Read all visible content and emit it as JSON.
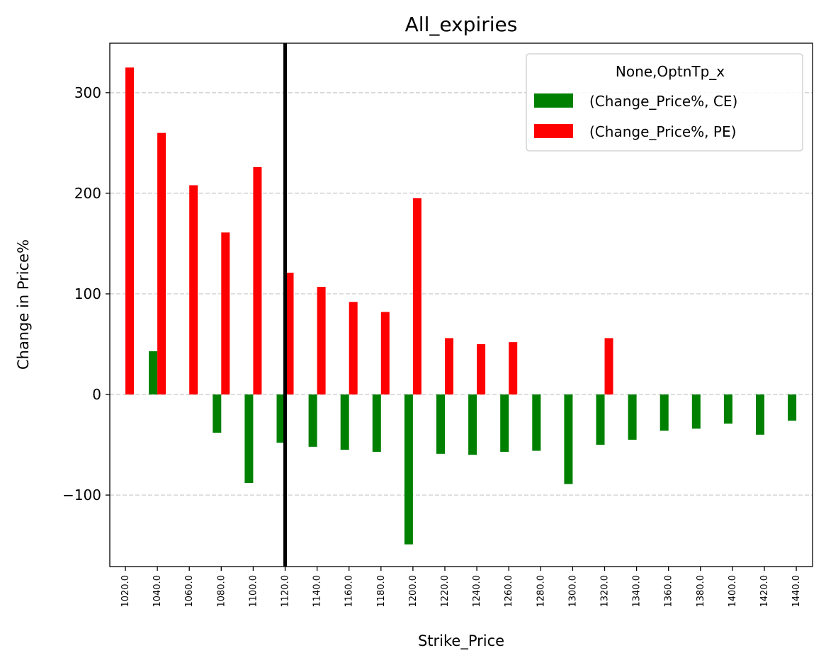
{
  "chart_data": {
    "type": "bar",
    "title": "All_expiries",
    "xlabel": "Strike_Price",
    "ylabel": "Change in Price%",
    "ylim": [
      -172,
      350
    ],
    "yticks": [
      -100,
      0,
      100,
      200,
      300
    ],
    "ytick_labels": [
      "−100",
      "0",
      "100",
      "200",
      "300"
    ],
    "grid": "y-dashed",
    "legend": {
      "title": "None,OptnTp_x",
      "placement": "top-right"
    },
    "categories": [
      "1020.0",
      "1040.0",
      "1060.0",
      "1080.0",
      "1100.0",
      "1120.0",
      "1140.0",
      "1160.0",
      "1180.0",
      "1200.0",
      "1220.0",
      "1240.0",
      "1260.0",
      "1280.0",
      "1300.0",
      "1320.0",
      "1340.0",
      "1360.0",
      "1380.0",
      "1400.0",
      "1420.0",
      "1440.0"
    ],
    "series": [
      {
        "name": "(Change_Price%, CE)",
        "color": "#008000",
        "values": [
          0,
          43,
          0,
          -38,
          -88,
          -48,
          -52,
          -55,
          -57,
          -149,
          -59,
          -60,
          -57,
          -56,
          -89,
          -50,
          -45,
          -36,
          -34,
          -29,
          -40,
          -26
        ]
      },
      {
        "name": "(Change_Price%, PE)",
        "color": "#ff0000",
        "values": [
          325,
          260,
          208,
          161,
          226,
          121,
          107,
          92,
          82,
          195,
          56,
          50,
          52,
          0,
          0,
          56,
          0,
          0,
          0,
          0,
          0,
          0
        ]
      }
    ],
    "vline": {
      "category": "1120.0",
      "color": "#000000"
    }
  }
}
